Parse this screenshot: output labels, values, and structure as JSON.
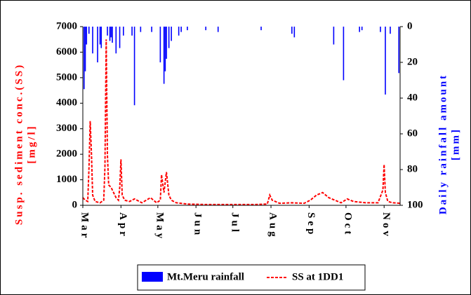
{
  "chart_data": {
    "type": "combo",
    "y_label": [
      "Susp. sediment conc.(SS)",
      "[mg/l]"
    ],
    "y2_label": [
      "Daily rainfall amount",
      "[mm]"
    ],
    "xlim": [
      0,
      258
    ],
    "xticks": [
      {
        "value": 0,
        "label": "Mar"
      },
      {
        "value": 31,
        "label": "Apr"
      },
      {
        "value": 61,
        "label": "May"
      },
      {
        "value": 92,
        "label": "Jun"
      },
      {
        "value": 122,
        "label": "Jul"
      },
      {
        "value": 153,
        "label": "Aug"
      },
      {
        "value": 184,
        "label": "Sep"
      },
      {
        "value": 214,
        "label": "Oct"
      },
      {
        "value": 245,
        "label": "Nov"
      }
    ],
    "ylim": [
      0,
      7000
    ],
    "yticks": [
      0,
      1000,
      2000,
      3000,
      4000,
      5000,
      6000,
      7000
    ],
    "y2lim": [
      0,
      100
    ],
    "y2ticks": [
      0,
      20,
      40,
      60,
      80,
      100
    ],
    "y2_inverted": true,
    "series": [
      {
        "name": "Mt.Meru rainfall",
        "type": "bar",
        "axis": "y2",
        "color": "#0000ff",
        "x": [
          1,
          2,
          3,
          5,
          8,
          12,
          14,
          15,
          20,
          22,
          23,
          24,
          27,
          30,
          33,
          40,
          42,
          47,
          56,
          63,
          66,
          67,
          68,
          70,
          72,
          78,
          80,
          85,
          100,
          110,
          145,
          170,
          172,
          204,
          212,
          225,
          227,
          242,
          246,
          250,
          257
        ],
        "values": [
          35,
          25,
          10,
          4,
          15,
          20,
          10,
          12,
          5,
          8,
          6,
          9,
          15,
          12,
          5,
          5,
          44,
          3,
          3,
          20,
          32,
          25,
          18,
          12,
          8,
          5,
          3,
          2,
          2,
          3,
          2,
          4,
          6,
          10,
          30,
          3,
          2,
          3,
          38,
          4,
          26
        ]
      },
      {
        "name": "SS at 1DD1",
        "type": "line",
        "color": "#ff0000",
        "dashed": true,
        "x": [
          0,
          2,
          4,
          5,
          6,
          7,
          8,
          10,
          14,
          17,
          18,
          19,
          20,
          21,
          23,
          25,
          27,
          29,
          30,
          31,
          32,
          34,
          38,
          42,
          48,
          55,
          60,
          63,
          64,
          66,
          68,
          70,
          72,
          76,
          85,
          100,
          120,
          140,
          150,
          152,
          154,
          160,
          170,
          180,
          185,
          190,
          195,
          200,
          205,
          210,
          215,
          220,
          230,
          240,
          244,
          245,
          246,
          248,
          252,
          258
        ],
        "values": [
          300,
          200,
          150,
          1500,
          3300,
          2000,
          400,
          150,
          100,
          200,
          1500,
          6500,
          2000,
          800,
          700,
          500,
          300,
          200,
          700,
          1800,
          400,
          200,
          150,
          250,
          100,
          300,
          100,
          200,
          1200,
          500,
          1300,
          400,
          200,
          100,
          50,
          30,
          30,
          30,
          50,
          400,
          200,
          80,
          100,
          80,
          200,
          400,
          500,
          300,
          200,
          100,
          250,
          150,
          100,
          100,
          600,
          1600,
          500,
          150,
          100,
          80
        ]
      }
    ],
    "legend": "bottom"
  }
}
